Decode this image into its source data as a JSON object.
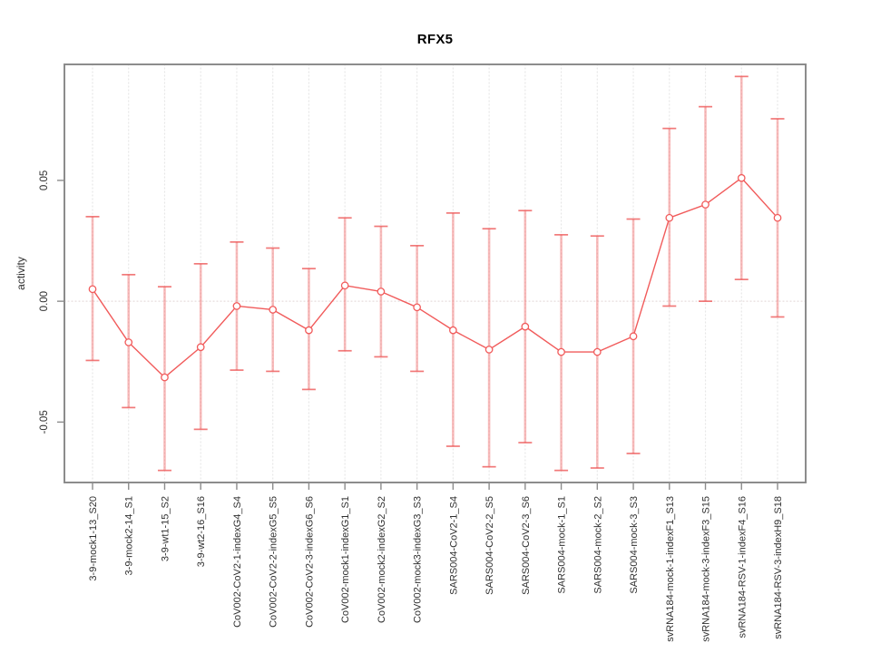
{
  "figure": {
    "background": "#ffffff"
  },
  "chart_data": {
    "type": "line",
    "title": "RFX5",
    "xlabel": "",
    "ylabel": "activity",
    "ylim": [
      -0.075,
      0.098
    ],
    "ytick_values": [
      -0.05,
      0.0,
      0.05
    ],
    "ytick_labels": [
      "-0.05",
      "0.00",
      "0.05"
    ],
    "legend": "none",
    "grid": "vertical dotted gridline per category, dotted horizontal line at y=0",
    "marker": "open-circle",
    "error_bars": true,
    "categories": [
      "3-9-mock1-13_S20",
      "3-9-mock2-14_S1",
      "3-9-wt1-15_S2",
      "3-9-wt2-16_S16",
      "CoV002-CoV2-1-indexG4_S4",
      "CoV002-CoV2-2-indexG5_S5",
      "CoV002-CoV2-3-indexG6_S6",
      "CoV002-mock1-indexG1_S1",
      "CoV002-mock2-indexG2_S2",
      "CoV002-mock3-indexG3_S3",
      "SARS004-CoV2-1_S4",
      "SARS004-CoV2-2_S5",
      "SARS004-CoV2-3_S6",
      "SARS004-mock-1_S1",
      "SARS004-mock-2_S2",
      "SARS004-mock-3_S3",
      "svRNA184-mock-1-indexF1_S13",
      "svRNA184-mock-3-indexF3_S15",
      "svRNA184-RSV-1-indexF4_S16",
      "svRNA184-RSV-3-indexH9_S18"
    ],
    "series": [
      {
        "name": "RFX5 activity",
        "color": "#f15b5b",
        "values": [
          0.005,
          -0.017,
          -0.0315,
          -0.019,
          -0.002,
          -0.0035,
          -0.012,
          0.0065,
          0.004,
          -0.0025,
          -0.012,
          -0.02,
          -0.0105,
          -0.021,
          -0.021,
          -0.0145,
          0.0345,
          0.04,
          0.051,
          0.0345
        ],
        "upper": [
          0.035,
          0.011,
          0.006,
          0.0155,
          0.0245,
          0.022,
          0.0135,
          0.0345,
          0.031,
          0.023,
          0.0365,
          0.03,
          0.0375,
          0.0275,
          0.027,
          0.034,
          0.0715,
          0.0805,
          0.093,
          0.0755
        ],
        "lower": [
          -0.0245,
          -0.044,
          -0.07,
          -0.053,
          -0.0285,
          -0.029,
          -0.0365,
          -0.0205,
          -0.023,
          -0.029,
          -0.06,
          -0.0685,
          -0.0585,
          -0.07,
          -0.069,
          -0.063,
          -0.002,
          0.0,
          0.009,
          -0.0065
        ]
      }
    ]
  },
  "colors": {
    "line": "#f15b5b",
    "marker_stroke": "#f15b5b",
    "marker_fill": "#ffffff",
    "error_bar": "rgba(241,96,96,0.42)",
    "error_cap": "rgba(238,88,88,0.8)",
    "grid": "#e7e7e7",
    "zero_line": "#e7dcdc",
    "box": "#8c8c8c",
    "tick": "#8c8c8c",
    "tick_label": "#303030",
    "title": "#000000"
  }
}
